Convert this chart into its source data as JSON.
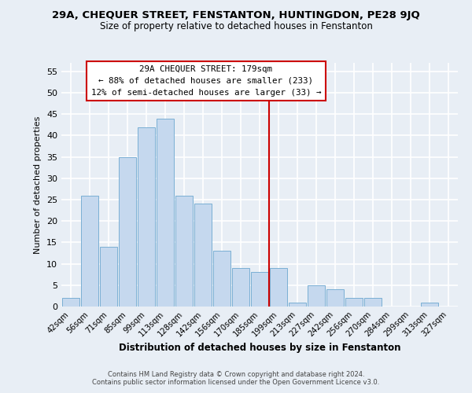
{
  "title": "29A, CHEQUER STREET, FENSTANTON, HUNTINGDON, PE28 9JQ",
  "subtitle": "Size of property relative to detached houses in Fenstanton",
  "xlabel": "Distribution of detached houses by size in Fenstanton",
  "ylabel": "Number of detached properties",
  "bar_labels": [
    "42sqm",
    "56sqm",
    "71sqm",
    "85sqm",
    "99sqm",
    "113sqm",
    "128sqm",
    "142sqm",
    "156sqm",
    "170sqm",
    "185sqm",
    "199sqm",
    "213sqm",
    "227sqm",
    "242sqm",
    "256sqm",
    "270sqm",
    "284sqm",
    "299sqm",
    "313sqm",
    "327sqm"
  ],
  "bar_values": [
    2,
    26,
    14,
    35,
    42,
    44,
    26,
    24,
    13,
    9,
    8,
    9,
    1,
    5,
    4,
    2,
    2,
    0,
    0,
    1,
    0
  ],
  "bar_color": "#c5d8ee",
  "bar_edge_color": "#7aafd4",
  "ylim": [
    0,
    57
  ],
  "yticks": [
    0,
    5,
    10,
    15,
    20,
    25,
    30,
    35,
    40,
    45,
    50,
    55
  ],
  "vline_x": 10.5,
  "vline_color": "#cc0000",
  "annotation_title": "29A CHEQUER STREET: 179sqm",
  "annotation_line1": "← 88% of detached houses are smaller (233)",
  "annotation_line2": "12% of semi-detached houses are larger (33) →",
  "annotation_box_color": "#cc0000",
  "bg_color": "#e8eef5",
  "grid_color": "#ffffff",
  "footer1": "Contains HM Land Registry data © Crown copyright and database right 2024.",
  "footer2": "Contains public sector information licensed under the Open Government Licence v3.0."
}
